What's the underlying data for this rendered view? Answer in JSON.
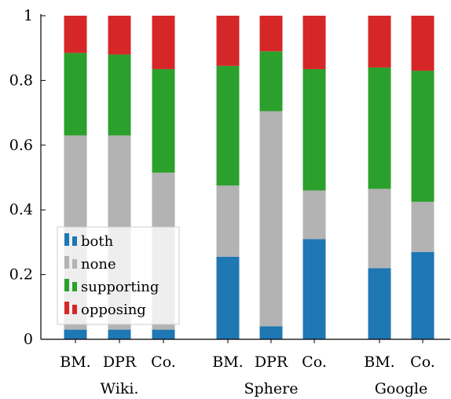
{
  "chart_data": {
    "type": "bar",
    "stacked": true,
    "title": "",
    "xlabel": "",
    "ylabel": "",
    "ylim": [
      0,
      1
    ],
    "yticks": [
      0,
      0.2,
      0.4,
      0.6,
      0.8,
      1
    ],
    "ytick_labels": [
      "0",
      "0.2",
      "0.4",
      "0.6",
      "0.8",
      "1"
    ],
    "grid": false,
    "legend_position": "bottom-left",
    "groups": [
      {
        "label": "Wiki.",
        "bars": [
          "BM.",
          "DPR",
          "Co."
        ]
      },
      {
        "label": "Sphere",
        "bars": [
          "BM.",
          "DPR",
          "Co."
        ]
      },
      {
        "label": "Google",
        "bars": [
          "BM.",
          "Co."
        ]
      }
    ],
    "categories": [
      "BM.",
      "DPR",
      "Co.",
      "BM.",
      "DPR",
      "Co.",
      "BM.",
      "Co."
    ],
    "series": [
      {
        "name": "both",
        "color": "#1f77b4",
        "values": [
          0.03,
          0.03,
          0.03,
          0.255,
          0.04,
          0.31,
          0.22,
          0.27
        ]
      },
      {
        "name": "none",
        "color": "#b3b3b3",
        "values": [
          0.6,
          0.6,
          0.485,
          0.22,
          0.665,
          0.15,
          0.245,
          0.155
        ]
      },
      {
        "name": "supporting",
        "color": "#2ca02c",
        "values": [
          0.255,
          0.25,
          0.32,
          0.37,
          0.185,
          0.375,
          0.375,
          0.405
        ]
      },
      {
        "name": "opposing",
        "color": "#d62728",
        "values": [
          0.115,
          0.12,
          0.165,
          0.155,
          0.11,
          0.165,
          0.16,
          0.17
        ]
      }
    ]
  }
}
